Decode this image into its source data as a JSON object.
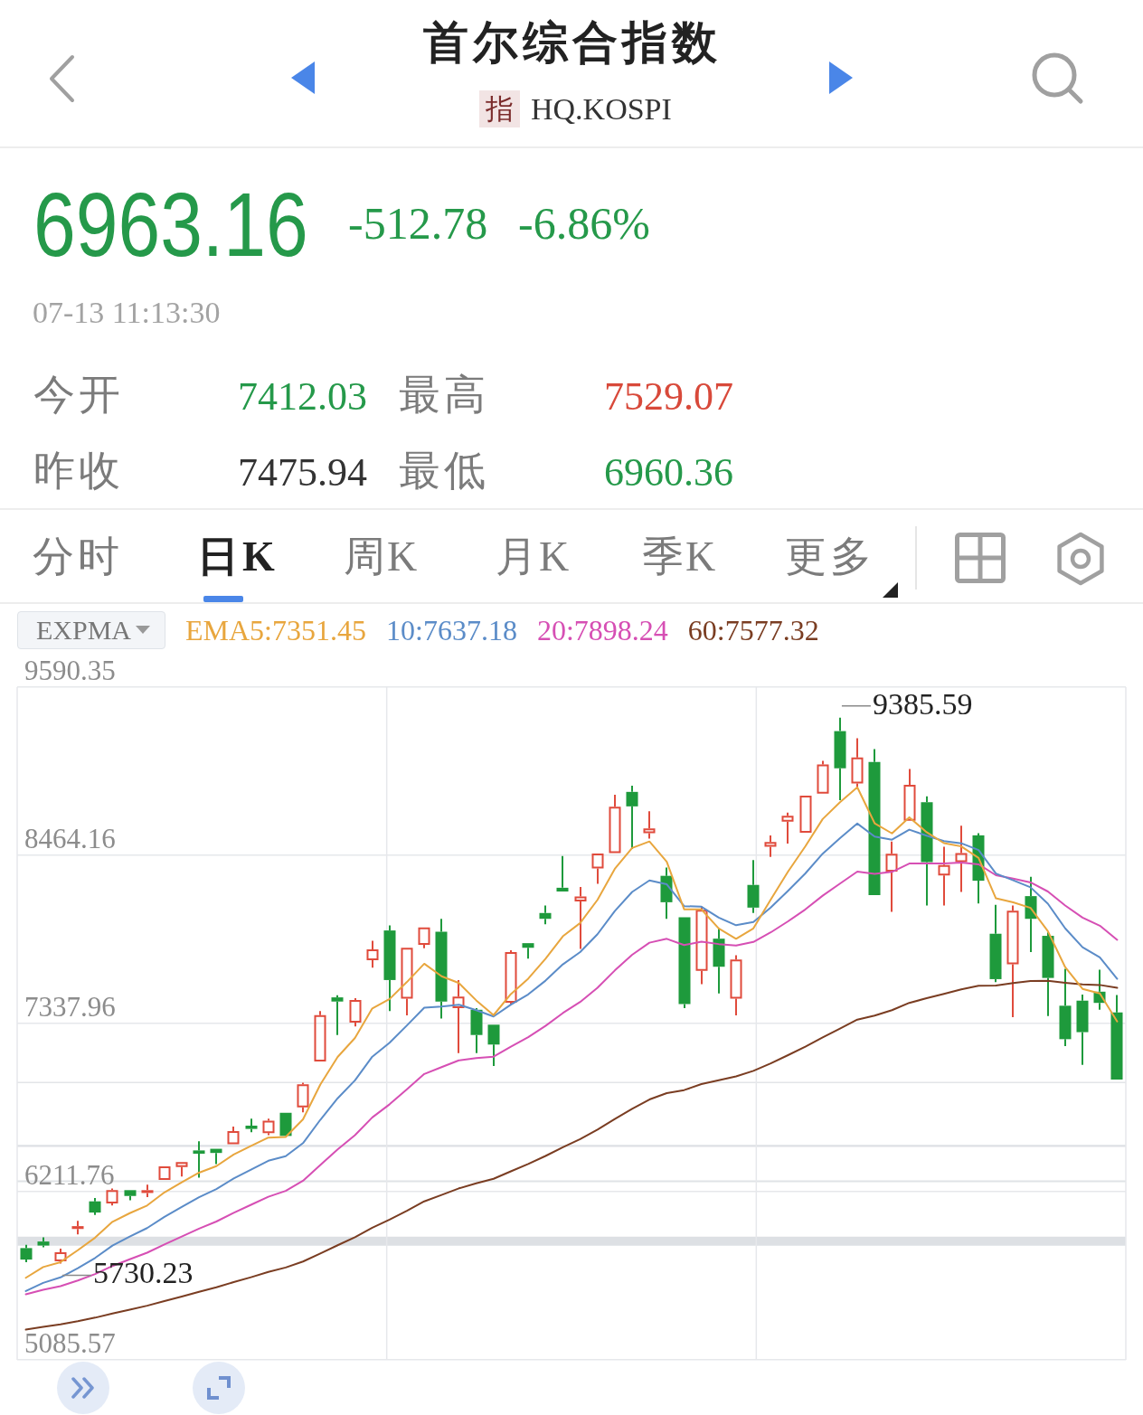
{
  "chart_data": {
    "type": "candlestick",
    "title": "首尔综合指数",
    "subtitle": "HQ.KOSPI",
    "categories": [
      null,
      null,
      null,
      null,
      null,
      null,
      null,
      null,
      null,
      null,
      null,
      null,
      null,
      null,
      null,
      null,
      null,
      null,
      null,
      null,
      null,
      null,
      null,
      null,
      null,
      null,
      null,
      null,
      null,
      null,
      null,
      null,
      null,
      null,
      null,
      null,
      null,
      null,
      null,
      null,
      null,
      null,
      null,
      null,
      null,
      null,
      null,
      null,
      null,
      null,
      null,
      null,
      null,
      null,
      null,
      null,
      null,
      null,
      null,
      null,
      null,
      null,
      null,
      null
    ],
    "ohlc": [
      [
        5834,
        5856,
        5740,
        5757
      ],
      [
        5878,
        5906,
        5840,
        5851
      ],
      [
        5745,
        5830,
        5730.23,
        5806
      ],
      [
        5962,
        6017,
        5925,
        5981
      ],
      [
        6147,
        6169,
        6056,
        6072
      ],
      [
        6133,
        6233,
        6119,
        6222
      ],
      [
        6222,
        6222,
        6155,
        6183
      ],
      [
        6203,
        6258,
        6175,
        6222
      ],
      [
        6291,
        6382,
        6291,
        6382
      ],
      [
        6377,
        6410,
        6313,
        6410
      ],
      [
        6488,
        6549,
        6305,
        6466
      ],
      [
        6499,
        6499,
        6396,
        6471
      ],
      [
        6529,
        6648,
        6529,
        6618
      ],
      [
        6654,
        6701,
        6610,
        6632
      ],
      [
        6604,
        6701,
        6590,
        6687
      ],
      [
        6740,
        6740,
        6585,
        6585
      ],
      [
        6776,
        6942,
        6743,
        6931
      ],
      [
        7083,
        7421,
        7083,
        7394
      ],
      [
        7513,
        7527,
        7261,
        7485
      ],
      [
        7344,
        7507,
        7319,
        7496
      ],
      [
        7762,
        7892,
        7712,
        7834
      ],
      [
        7961,
        7995,
        7421,
        7629
      ],
      [
        7504,
        7851,
        7393,
        7845
      ],
      [
        7864,
        7981,
        7842,
        7981
      ],
      [
        7953,
        8039,
        7371,
        7485
      ],
      [
        7441,
        7629,
        7139,
        7518
      ],
      [
        7430,
        7441,
        7139,
        7261
      ],
      [
        7330,
        7330,
        7053,
        7197
      ],
      [
        7477,
        7828,
        7463,
        7817
      ],
      [
        7876,
        7876,
        7773,
        7845
      ],
      [
        8078,
        8128,
        8003,
        8039
      ],
      [
        8247,
        8460,
        8222,
        8222
      ],
      [
        8155,
        8252,
        7837,
        8189
      ],
      [
        8377,
        8477,
        8274,
        8477
      ],
      [
        8479,
        8870,
        8479,
        8790
      ],
      [
        8889,
        8931,
        8507,
        8792
      ],
      [
        8612,
        8759,
        8576,
        8645
      ],
      [
        8327,
        8382,
        8039,
        8150
      ],
      [
        8050,
        8050,
        7441,
        7468
      ],
      [
        7690,
        8122,
        7601,
        8100
      ],
      [
        7906,
        7975,
        7540,
        7718
      ],
      [
        7504,
        7795,
        7393,
        7767
      ],
      [
        8266,
        8432,
        8078,
        8114
      ],
      [
        8521,
        8598,
        8454,
        8554
      ],
      [
        8690,
        8751,
        8543,
        8729
      ],
      [
        8615,
        8864,
        8615,
        8864
      ],
      [
        8878,
        9097,
        8878,
        9072
      ],
      [
        9296,
        9385.59,
        8834,
        9047
      ],
      [
        8945,
        9249,
        8917,
        9119
      ],
      [
        9089,
        9175,
        8197,
        8197
      ],
      [
        8355,
        8557,
        8086,
        8474
      ],
      [
        8695,
        9042,
        8695,
        8936
      ],
      [
        8820,
        8859,
        8128,
        8418
      ],
      [
        8330,
        8521,
        8128,
        8399
      ],
      [
        8418,
        8662,
        8219,
        8479
      ],
      [
        8598,
        8612,
        8141,
        8294
      ],
      [
        7939,
        8133,
        7615,
        7635
      ],
      [
        7734,
        8128,
        7380,
        8094
      ],
      [
        8191,
        8321,
        7817,
        8039
      ],
      [
        7925,
        7948,
        7388,
        7643
      ],
      [
        7457,
        7704,
        7186,
        7233
      ],
      [
        7491,
        7532,
        7061,
        7280
      ],
      [
        7551,
        7698,
        7430,
        7475.94
      ],
      [
        7412.03,
        7529.07,
        6960.36,
        6963.16
      ]
    ],
    "colors": [
      "#1e9a3c",
      "#1e9a3c",
      "#e04b3c",
      "#e04b3c",
      "#1e9a3c",
      "#e04b3c",
      "#1e9a3c",
      "#e04b3c",
      "#e04b3c",
      "#e04b3c",
      "#1e9a3c",
      "#1e9a3c",
      "#e04b3c",
      "#1e9a3c",
      "#e04b3c",
      "#1e9a3c",
      "#e04b3c",
      "#e04b3c",
      "#1e9a3c",
      "#e04b3c",
      "#e04b3c",
      "#1e9a3c",
      "#e04b3c",
      "#e04b3c",
      "#1e9a3c",
      "#e04b3c",
      "#1e9a3c",
      "#1e9a3c",
      "#e04b3c",
      "#1e9a3c",
      "#1e9a3c",
      "#1e9a3c",
      "#e04b3c",
      "#e04b3c",
      "#e04b3c",
      "#1e9a3c",
      "#e04b3c",
      "#1e9a3c",
      "#1e9a3c",
      "#e04b3c",
      "#1e9a3c",
      "#e04b3c",
      "#1e9a3c",
      "#e04b3c",
      "#e04b3c",
      "#e04b3c",
      "#e04b3c",
      "#1e9a3c",
      "#e04b3c",
      "#1e9a3c",
      "#e04b3c",
      "#e04b3c",
      "#1e9a3c",
      "#e04b3c",
      "#e04b3c",
      "#1e9a3c",
      "#1e9a3c",
      "#e04b3c",
      "#1e9a3c",
      "#1e9a3c",
      "#1e9a3c",
      "#1e9a3c",
      "#1e9a3c",
      "#1e9a3c"
    ],
    "series": [
      {
        "type": "line",
        "name": "EMA5:7351.45",
        "color": "#e8a63e",
        "values": [
          5635,
          5707,
          5740,
          5820,
          5904,
          6010,
          6068,
          6119,
          6207,
          6275,
          6339,
          6383,
          6461,
          6518,
          6574,
          6578,
          6696,
          6929,
          7114,
          7241,
          7439,
          7502,
          7616,
          7738,
          7654,
          7609,
          7493,
          7394,
          7535,
          7638,
          7772,
          7922,
          8011,
          8166,
          8374,
          8513,
          8557,
          8421,
          8103,
          8102,
          7974,
          7905,
          7975,
          8168,
          8355,
          8525,
          8707,
          8820,
          8920,
          8679,
          8611,
          8719,
          8619,
          8546,
          8524,
          8447,
          8176,
          8149,
          8112,
          7956,
          7715,
          7570,
          7539,
          7351.45
        ]
      },
      {
        "type": "line",
        "name": "10:7637.18",
        "color": "#5b8cc8",
        "values": [
          5546,
          5601,
          5638,
          5700,
          5768,
          5851,
          5911,
          5968,
          6043,
          6110,
          6175,
          6229,
          6300,
          6360,
          6419,
          6449,
          6537,
          6693,
          6837,
          6957,
          7116,
          7209,
          7325,
          7444,
          7452,
          7464,
          7427,
          7385,
          7464,
          7533,
          7625,
          7734,
          7816,
          7936,
          8091,
          8219,
          8296,
          8270,
          8124,
          8120,
          8047,
          7996,
          8017,
          8115,
          8227,
          8343,
          8475,
          8579,
          8677,
          8590,
          8569,
          8636,
          8596,
          8560,
          8545,
          8500,
          8342,
          8297,
          8250,
          8140,
          7975,
          7849,
          7781,
          7637.18
        ]
      },
      {
        "type": "line",
        "name": "20:7898.24",
        "color": "#d64fb4",
        "values": [
          5524,
          5555,
          5579,
          5617,
          5660,
          5714,
          5759,
          5803,
          5858,
          5911,
          5964,
          6012,
          6070,
          6124,
          6178,
          6217,
          6285,
          6391,
          6495,
          6590,
          6709,
          6797,
          6897,
          7000,
          7046,
          7091,
          7107,
          7116,
          7183,
          7246,
          7322,
          7408,
          7482,
          7577,
          7693,
          7798,
          7879,
          7905,
          7863,
          7886,
          7870,
          7860,
          7884,
          7948,
          8022,
          8102,
          8194,
          8275,
          8355,
          8340,
          8353,
          8409,
          8410,
          8409,
          8416,
          8404,
          8331,
          8308,
          8283,
          8222,
          8128,
          8047,
          7993,
          7898.24
        ]
      },
      {
        "type": "line",
        "name": "60:7577.32",
        "color": "#7a3d22",
        "values": [
          5288,
          5306,
          5323,
          5344,
          5368,
          5396,
          5422,
          5448,
          5479,
          5509,
          5541,
          5571,
          5606,
          5639,
          5674,
          5704,
          5744,
          5798,
          5853,
          5907,
          5970,
          6025,
          6084,
          6147,
          6190,
          6234,
          6268,
          6298,
          6348,
          6397,
          6451,
          6509,
          6564,
          6627,
          6698,
          6767,
          6829,
          6872,
          6892,
          6932,
          6958,
          6984,
          7021,
          7071,
          7126,
          7183,
          7245,
          7304,
          7364,
          7391,
          7427,
          7476,
          7507,
          7536,
          7567,
          7591,
          7592,
          7609,
          7623,
          7624,
          7611,
          7600,
          7596,
          7577.32
        ]
      }
    ],
    "ylim": [
      5085.57,
      9590.35
    ],
    "yticks": [
      5085.57,
      6211.76,
      7337.96,
      8464.16,
      9590.35
    ],
    "bands": [
      {
        "axis": "y",
        "from": 5850,
        "to": 5910,
        "color": "#dde0e4"
      },
      {
        "axis": "y",
        "from": 6276,
        "to": 6288,
        "color": "#e0e3e6"
      },
      {
        "axis": "y",
        "from": 6512,
        "to": 6525,
        "color": "#dde0e4"
      },
      {
        "axis": "y",
        "from": 6940,
        "to": 6948,
        "color": "#e3e5e8"
      }
    ],
    "grid": true,
    "legend": "top left",
    "legend_title": "EXPMA",
    "annotations": [
      "6963.16",
      "-512.78",
      "-6.86%",
      "07-13 11:13:30",
      "今开",
      "7412.03",
      "最高",
      "7529.07",
      "昨收",
      "7475.94",
      "最低",
      "6960.36",
      "分时",
      "日K",
      "周K",
      "月K",
      "季K",
      "更多",
      "指",
      "9385.59",
      "5730.23"
    ]
  }
}
